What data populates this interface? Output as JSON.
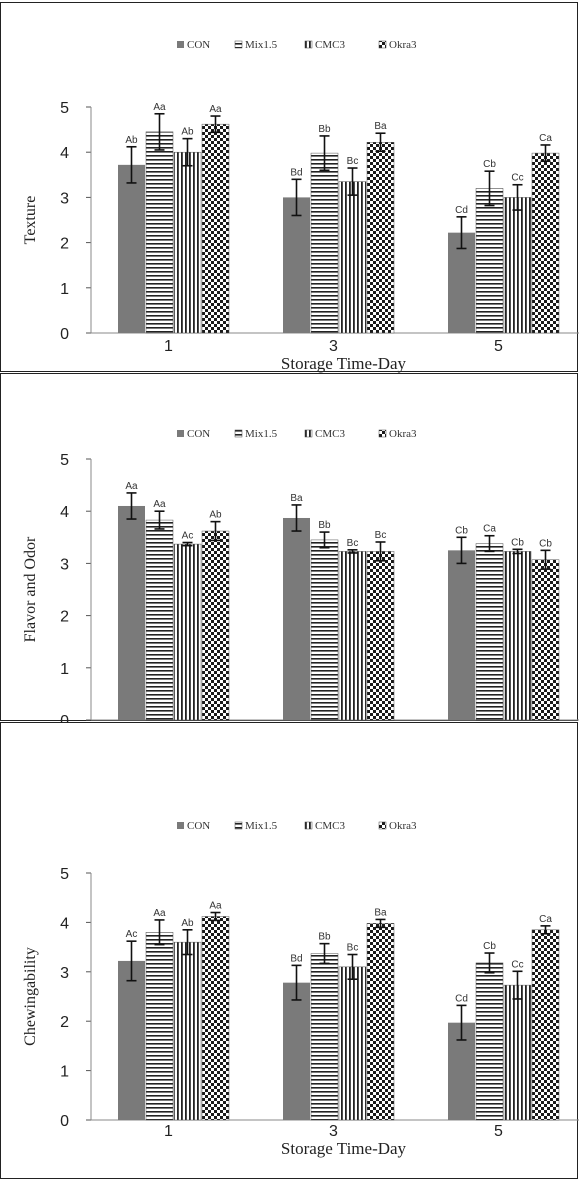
{
  "chart_data": [
    {
      "type": "bar",
      "ylabel": "Texture",
      "xlabel": "Storage Time-Day",
      "categories": [
        "1",
        "3",
        "5"
      ],
      "ylim": [
        0,
        5
      ],
      "yticks": [
        "0",
        "1",
        "2",
        "3",
        "4",
        "5"
      ],
      "grid": false,
      "legend_position": "top",
      "series": [
        {
          "name": "CON",
          "values": [
            3.72,
            3.0,
            2.22
          ],
          "errors": [
            0.4,
            0.4,
            0.35
          ],
          "labels": [
            "Ab",
            "Bd",
            "Cd"
          ]
        },
        {
          "name": "Mix1.5",
          "values": [
            4.45,
            3.98,
            3.2
          ],
          "errors": [
            0.4,
            0.38,
            0.38
          ],
          "labels": [
            "Aa",
            "Bb",
            "Cb"
          ]
        },
        {
          "name": "CMC3",
          "values": [
            4.0,
            3.35,
            3.0
          ],
          "errors": [
            0.3,
            0.3,
            0.28
          ],
          "labels": [
            "Ab",
            "Bc",
            "Cc"
          ]
        },
        {
          "name": "Okra3",
          "values": [
            4.62,
            4.22,
            3.98
          ],
          "errors": [
            0.18,
            0.2,
            0.18
          ],
          "labels": [
            "Aa",
            "Ba",
            "Ca"
          ]
        }
      ]
    },
    {
      "type": "bar",
      "ylabel": "Flavor and Odor",
      "xlabel": "Storage Time-Day",
      "categories": [
        "1",
        "3",
        "5"
      ],
      "ylim": [
        0,
        5
      ],
      "yticks": [
        "0",
        "1",
        "2",
        "3",
        "4",
        "5"
      ],
      "grid": false,
      "legend_position": "top",
      "series": [
        {
          "name": "CON",
          "values": [
            4.1,
            3.87,
            3.25
          ],
          "errors": [
            0.25,
            0.25,
            0.25
          ],
          "labels": [
            "Aa",
            "Ba",
            "Cb"
          ]
        },
        {
          "name": "Mix1.5",
          "values": [
            3.83,
            3.45,
            3.38
          ],
          "errors": [
            0.17,
            0.15,
            0.15
          ],
          "labels": [
            "Aa",
            "Bb",
            "Ca"
          ]
        },
        {
          "name": "CMC3",
          "values": [
            3.37,
            3.23,
            3.23
          ],
          "errors": [
            0.03,
            0.03,
            0.04
          ],
          "labels": [
            "Ac",
            "Bc",
            "Cb"
          ]
        },
        {
          "name": "Okra3",
          "values": [
            3.62,
            3.23,
            3.07
          ],
          "errors": [
            0.18,
            0.18,
            0.18
          ],
          "labels": [
            "Ab",
            "Bc",
            "Cb"
          ]
        }
      ]
    },
    {
      "type": "bar",
      "ylabel": "Chewingability",
      "xlabel": "Storage Time-Day",
      "categories": [
        "1",
        "3",
        "5"
      ],
      "ylim": [
        0,
        5
      ],
      "yticks": [
        "0",
        "1",
        "2",
        "3",
        "4",
        "5"
      ],
      "grid": false,
      "legend_position": "top",
      "series": [
        {
          "name": "CON",
          "values": [
            3.22,
            2.78,
            1.97
          ],
          "errors": [
            0.4,
            0.35,
            0.35
          ],
          "labels": [
            "Ac",
            "Bd",
            "Cd"
          ]
        },
        {
          "name": "Mix1.5",
          "values": [
            3.8,
            3.37,
            3.18
          ],
          "errors": [
            0.25,
            0.2,
            0.2
          ],
          "labels": [
            "Aa",
            "Bb",
            "Cb"
          ]
        },
        {
          "name": "CMC3",
          "values": [
            3.6,
            3.1,
            2.73
          ],
          "errors": [
            0.25,
            0.25,
            0.28
          ],
          "labels": [
            "Ab",
            "Bc",
            "Cc"
          ]
        },
        {
          "name": "Okra3",
          "values": [
            4.12,
            3.98,
            3.85
          ],
          "errors": [
            0.08,
            0.08,
            0.08
          ],
          "labels": [
            "Aa",
            "Ba",
            "Ca"
          ]
        }
      ]
    }
  ]
}
